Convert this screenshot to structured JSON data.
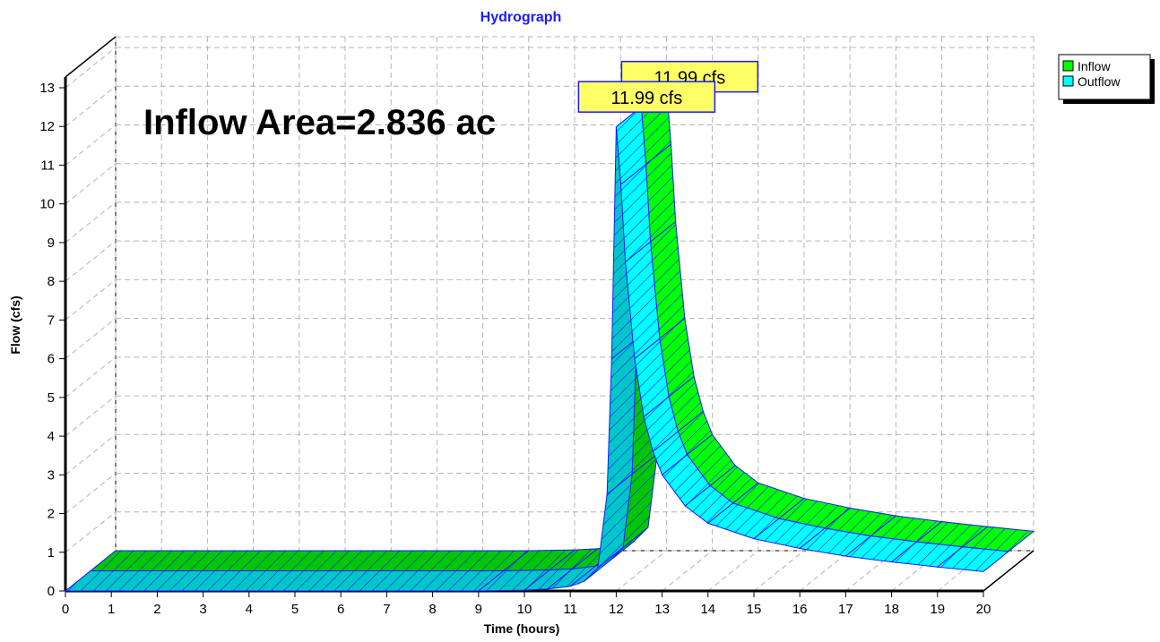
{
  "chart_data": {
    "type": "area",
    "title": "Hydrograph",
    "xlabel": "Time  (hours)",
    "ylabel": "Flow  (cfs)",
    "xlim": [
      0,
      20
    ],
    "ylim": [
      0,
      13
    ],
    "x_ticks": [
      "0",
      "1",
      "2",
      "3",
      "4",
      "5",
      "6",
      "7",
      "8",
      "9",
      "10",
      "11",
      "12",
      "13",
      "14",
      "15",
      "16",
      "17",
      "18",
      "19",
      "20"
    ],
    "y_ticks": [
      "0",
      "1",
      "2",
      "3",
      "4",
      "5",
      "6",
      "7",
      "8",
      "9",
      "10",
      "11",
      "12",
      "13"
    ],
    "grid": true,
    "legend_position": "top-right",
    "annotation": "Inflow Area=2.836 ac",
    "peak_labels": [
      "11.99 cfs",
      "11.99 cfs"
    ],
    "series": [
      {
        "name": "Inflow",
        "color": "#00ff00",
        "x": [
          0,
          9,
          10,
          10.5,
          11,
          11.3,
          11.6,
          11.8,
          11.9,
          12.0,
          12.1,
          12.2,
          12.4,
          12.6,
          12.8,
          13.0,
          13.5,
          14,
          15,
          16,
          17,
          18,
          19,
          20
        ],
        "y": [
          0,
          0,
          0.02,
          0.05,
          0.12,
          0.25,
          0.6,
          2.5,
          6.0,
          11.99,
          10.5,
          8.5,
          6.0,
          4.5,
          3.6,
          3.0,
          2.2,
          1.75,
          1.35,
          1.1,
          0.9,
          0.75,
          0.62,
          0.5
        ]
      },
      {
        "name": "Outflow",
        "color": "#00ffff",
        "x": [
          0,
          9,
          10,
          10.5,
          11,
          11.3,
          11.6,
          11.8,
          11.9,
          12.0,
          12.1,
          12.2,
          12.4,
          12.6,
          12.8,
          13.0,
          13.5,
          14,
          15,
          16,
          17,
          18,
          19,
          20
        ],
        "y": [
          0,
          0,
          0.02,
          0.05,
          0.12,
          0.25,
          0.6,
          2.5,
          6.0,
          11.99,
          10.5,
          8.5,
          6.0,
          4.5,
          3.6,
          3.0,
          2.2,
          1.75,
          1.35,
          1.1,
          0.9,
          0.75,
          0.62,
          0.5
        ]
      }
    ]
  }
}
